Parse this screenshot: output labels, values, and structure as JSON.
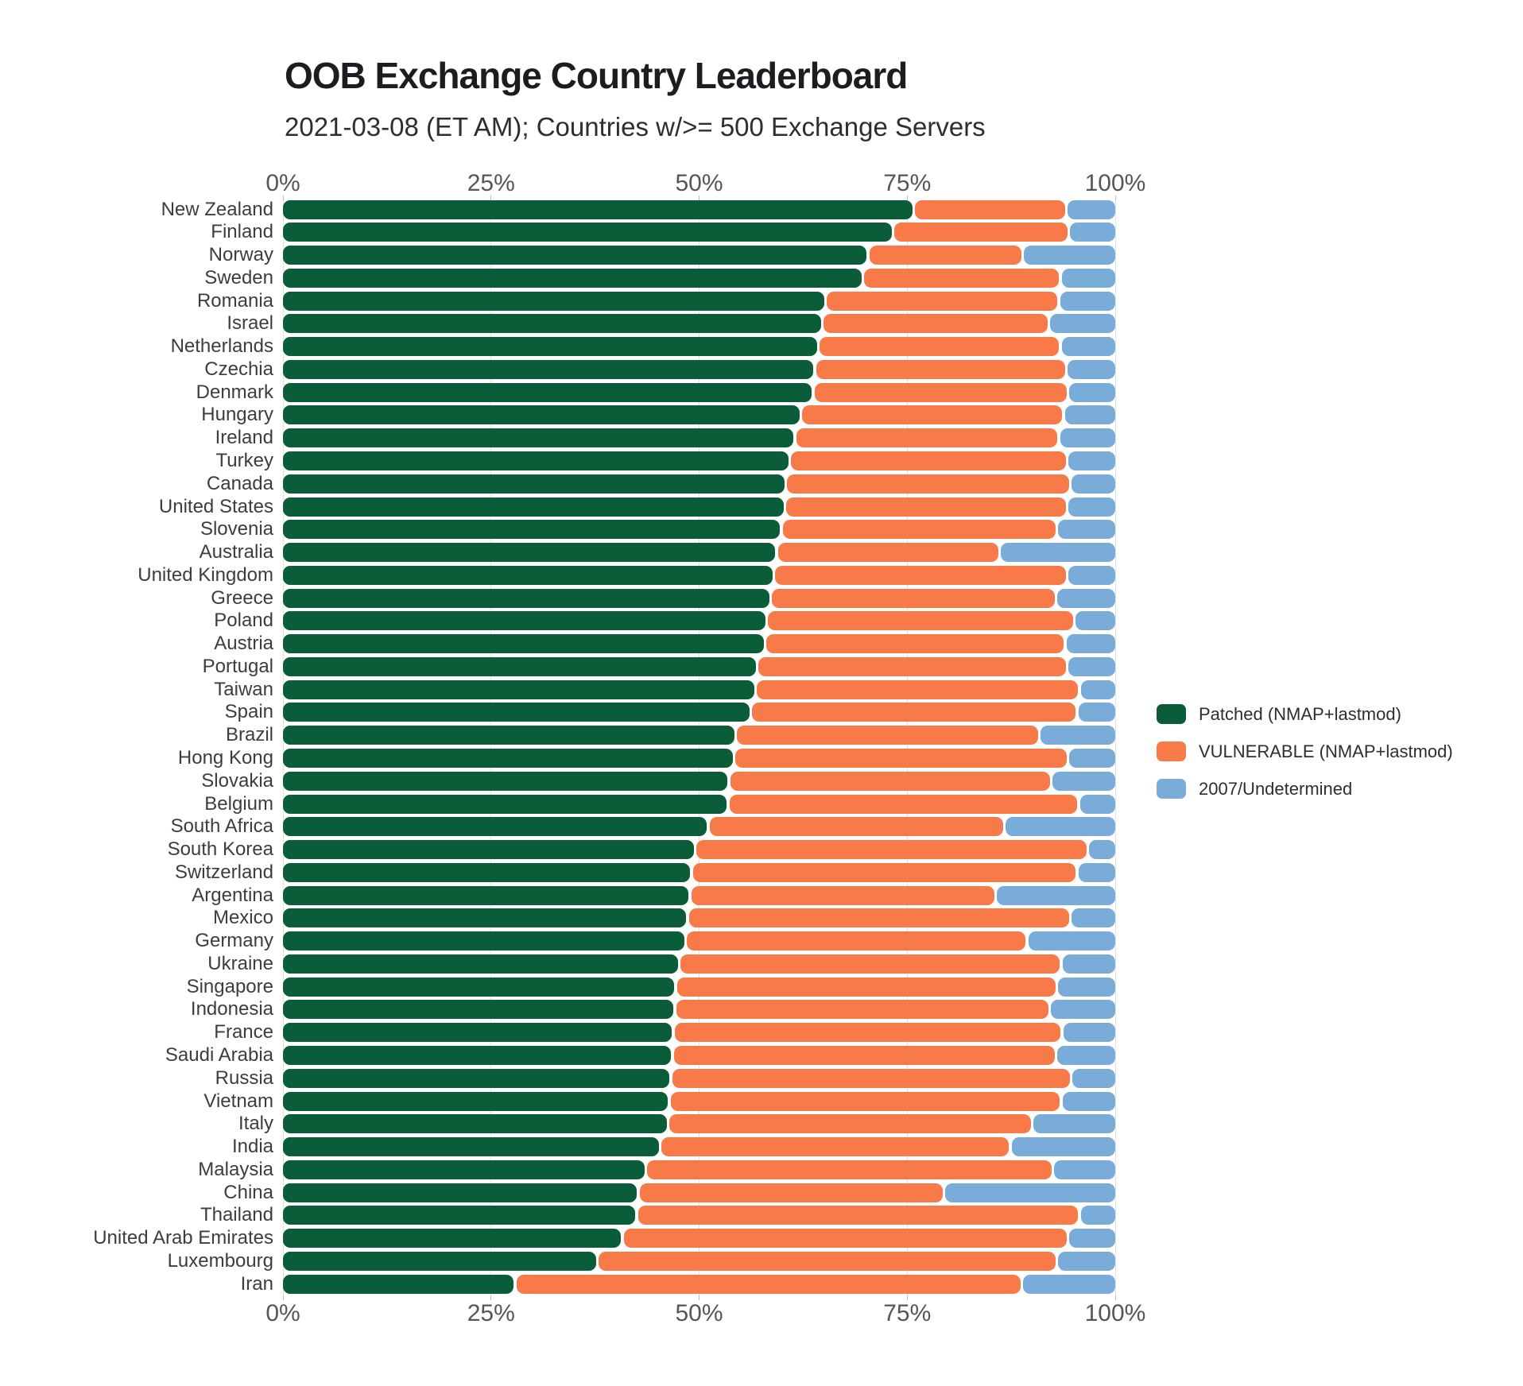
{
  "header": {
    "title": "OOB Exchange Country Leaderboard",
    "subtitle": "2021-03-08 (ET AM); Countries w/>= 500 Exchange Servers"
  },
  "chart_data": {
    "type": "bar",
    "orientation": "horizontal-stacked",
    "title": "OOB Exchange Country Leaderboard",
    "subtitle": "2021-03-08 (ET AM); Countries w/>= 500 Exchange Servers",
    "xlabel": "",
    "ylabel": "",
    "xlim": [
      0,
      100
    ],
    "x_tick_values": [
      0,
      25,
      50,
      75,
      100
    ],
    "x_ticks": [
      "0%",
      "25%",
      "50%",
      "75%",
      "100%"
    ],
    "grid": "vertical-light",
    "legend_position": "right",
    "units": "percent",
    "categories": [
      "New Zealand",
      "Finland",
      "Norway",
      "Sweden",
      "Romania",
      "Israel",
      "Netherlands",
      "Czechia",
      "Denmark",
      "Hungary",
      "Ireland",
      "Turkey",
      "Canada",
      "United States",
      "Slovenia",
      "Australia",
      "United Kingdom",
      "Greece",
      "Poland",
      "Austria",
      "Portugal",
      "Taiwan",
      "Spain",
      "Brazil",
      "Hong Kong",
      "Slovakia",
      "Belgium",
      "South Africa",
      "South Korea",
      "Switzerland",
      "Argentina",
      "Mexico",
      "Germany",
      "Ukraine",
      "Singapore",
      "Indonesia",
      "France",
      "Saudi Arabia",
      "Russia",
      "Vietnam",
      "Italy",
      "India",
      "Malaysia",
      "China",
      "Thailand",
      "United Arab Emirates",
      "Luxembourg",
      "Iran"
    ],
    "series": [
      {
        "name": "Patched (NMAP+lastmod)",
        "color": "#0b5c38",
        "values": [
          75.8,
          73.3,
          70.3,
          69.7,
          65.2,
          64.8,
          64.3,
          63.9,
          63.7,
          62.2,
          61.5,
          60.9,
          60.4,
          60.3,
          59.9,
          59.3,
          59.0,
          58.6,
          58.1,
          57.9,
          57.0,
          56.8,
          56.2,
          54.4,
          54.2,
          53.6,
          53.5,
          51.1,
          49.5,
          49.1,
          48.9,
          48.6,
          48.4,
          47.6,
          47.2,
          47.1,
          46.9,
          46.8,
          46.6,
          46.4,
          46.3,
          45.3,
          43.6,
          42.7,
          42.5,
          40.8,
          37.8,
          27.9
        ]
      },
      {
        "name": "VULNERABLE (NMAP+lastmod)",
        "color": "#f87a49",
        "values": [
          18.3,
          21.1,
          18.6,
          23.7,
          28.0,
          27.2,
          29.1,
          30.2,
          30.6,
          31.6,
          31.7,
          33.3,
          34.2,
          33.9,
          33.1,
          26.8,
          35.2,
          34.3,
          37.0,
          36.1,
          37.2,
          38.9,
          39.2,
          36.5,
          40.1,
          38.7,
          42.1,
          35.6,
          47.2,
          46.3,
          36.7,
          46.0,
          41.0,
          45.9,
          45.8,
          45.0,
          46.7,
          46.1,
          48.1,
          47.1,
          43.7,
          42.1,
          48.9,
          36.7,
          53.2,
          53.5,
          55.2,
          60.9
        ]
      },
      {
        "name": "2007/Undetermined",
        "color": "#79acd8",
        "values": [
          5.9,
          5.6,
          11.1,
          6.6,
          6.8,
          8.0,
          6.6,
          5.9,
          5.7,
          6.2,
          6.8,
          5.8,
          5.4,
          5.8,
          7.0,
          13.9,
          5.8,
          7.1,
          4.9,
          6.0,
          5.8,
          4.3,
          4.6,
          9.1,
          5.7,
          7.7,
          4.4,
          13.3,
          3.3,
          4.6,
          14.4,
          5.4,
          10.6,
          6.5,
          7.0,
          7.9,
          6.4,
          7.1,
          5.3,
          6.5,
          10.0,
          12.6,
          7.5,
          20.6,
          4.3,
          5.7,
          7.0,
          11.2
        ]
      }
    ]
  }
}
